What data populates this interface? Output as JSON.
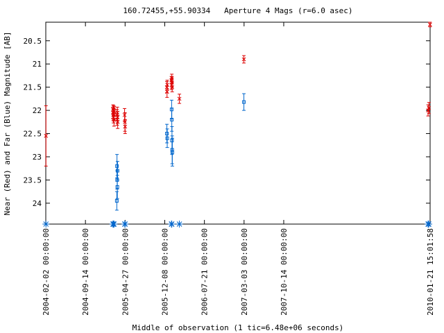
{
  "chart_data": {
    "type": "scatter",
    "title": "160.72455,+55.90334   Aperture 4 Mags (r=6.0 asec)",
    "xlabel": "Middle of observation (1 tic=6.48e+06 seconds)",
    "ylabel": "Near (Red) and Far (Blue) Magnitude [AB]",
    "x_axis": {
      "type": "date",
      "range": [
        "2004-02-02 00:00:00",
        "2010-01-21 15:01:58"
      ],
      "tick_labels": [
        "2004-02-02 00:00:00",
        "2004-09-14 00:00:00",
        "2005-04-27 00:00:00",
        "2005-12-08 00:00:00",
        "2006-07-21 00:00:00",
        "2007-03-03 00:00:00",
        "2007-10-14 00:00:00",
        "2010-01-21 15:01:58"
      ]
    },
    "y_axis": {
      "inverted": true,
      "range": [
        24.45,
        20.1
      ],
      "tick_labels": [
        "20.5",
        "21",
        "21.5",
        "22",
        "22.5",
        "23",
        "23.5",
        "24"
      ]
    },
    "series": [
      {
        "name": "Near",
        "color": "#dd0000",
        "marker": "x",
        "points": [
          {
            "x": "2004-02-03",
            "y": 22.55,
            "err": 0.65
          },
          {
            "x": "2005-02-17",
            "y": 22.05,
            "err": 0.12
          },
          {
            "x": "2005-02-18",
            "y": 21.98,
            "err": 0.1
          },
          {
            "x": "2005-02-19",
            "y": 22.1,
            "err": 0.12
          },
          {
            "x": "2005-02-20",
            "y": 22.15,
            "err": 0.12
          },
          {
            "x": "2005-02-21",
            "y": 22.0,
            "err": 0.1
          },
          {
            "x": "2005-02-22",
            "y": 22.08,
            "err": 0.12
          },
          {
            "x": "2005-02-23",
            "y": 22.2,
            "err": 0.14
          },
          {
            "x": "2005-02-24",
            "y": 22.02,
            "err": 0.1
          },
          {
            "x": "2005-03-12",
            "y": 22.1,
            "err": 0.12
          },
          {
            "x": "2005-03-13",
            "y": 22.2,
            "err": 0.12
          },
          {
            "x": "2005-03-14",
            "y": 22.05,
            "err": 0.12
          },
          {
            "x": "2005-03-15",
            "y": 22.15,
            "err": 0.12
          },
          {
            "x": "2005-03-16",
            "y": 22.25,
            "err": 0.14
          },
          {
            "x": "2005-04-24",
            "y": 22.1,
            "err": 0.14
          },
          {
            "x": "2005-04-26",
            "y": 22.25,
            "err": 0.2
          },
          {
            "x": "2005-04-27",
            "y": 22.35,
            "err": 0.15
          },
          {
            "x": "2005-12-20",
            "y": 21.5,
            "err": 0.12
          },
          {
            "x": "2005-12-21",
            "y": 21.6,
            "err": 0.12
          },
          {
            "x": "2005-12-22",
            "y": 21.45,
            "err": 0.1
          },
          {
            "x": "2006-01-15",
            "y": 21.35,
            "err": 0.08
          },
          {
            "x": "2006-01-16",
            "y": 21.45,
            "err": 0.1
          },
          {
            "x": "2006-01-17",
            "y": 21.3,
            "err": 0.08
          },
          {
            "x": "2006-01-18",
            "y": 21.4,
            "err": 0.1
          },
          {
            "x": "2006-01-19",
            "y": 21.5,
            "err": 0.1
          },
          {
            "x": "2006-03-01",
            "y": 21.75,
            "err": 0.1
          },
          {
            "x": "2007-03-02",
            "y": 20.9,
            "err": 0.08
          },
          {
            "x": "2010-01-10",
            "y": 22.0,
            "err": 0.12
          },
          {
            "x": "2010-01-15",
            "y": 21.95,
            "err": 0.12
          },
          {
            "x": "2010-01-21",
            "y": 20.15,
            "err": 0.05
          }
        ]
      },
      {
        "name": "Far",
        "color": "#0066cc",
        "marker": "square",
        "points": [
          {
            "x": "2005-03-11",
            "y": 23.95,
            "err": 0.2
          },
          {
            "x": "2005-03-12",
            "y": 23.2,
            "err": 0.25
          },
          {
            "x": "2005-03-13",
            "y": 23.5,
            "err": 0.2
          },
          {
            "x": "2005-03-14",
            "y": 23.65,
            "err": 0.25
          },
          {
            "x": "2005-03-15",
            "y": 23.3,
            "err": 0.2
          },
          {
            "x": "2005-12-20",
            "y": 22.5,
            "err": 0.2
          },
          {
            "x": "2005-12-22",
            "y": 22.6,
            "err": 0.2
          },
          {
            "x": "2006-01-16",
            "y": 21.98,
            "err": 0.2
          },
          {
            "x": "2006-01-17",
            "y": 22.2,
            "err": 0.25
          },
          {
            "x": "2006-01-18",
            "y": 22.65,
            "err": 0.3
          },
          {
            "x": "2006-01-19",
            "y": 22.85,
            "err": 0.3
          },
          {
            "x": "2006-01-20",
            "y": 22.9,
            "err": 0.3
          },
          {
            "x": "2007-03-02",
            "y": 21.82,
            "err": 0.18
          }
        ]
      }
    ],
    "upper_limit_markers": [
      {
        "x": "2004-02-03",
        "color": "#0066cc"
      },
      {
        "x": "2005-02-17",
        "color": "#0066cc"
      },
      {
        "x": "2005-02-19",
        "color": "#0066cc"
      },
      {
        "x": "2005-02-21",
        "color": "#0066cc"
      },
      {
        "x": "2005-02-23",
        "color": "#0066cc"
      },
      {
        "x": "2005-04-25",
        "color": "#0066cc"
      },
      {
        "x": "2005-04-27",
        "color": "#0066cc"
      },
      {
        "x": "2006-01-15",
        "color": "#0066cc"
      },
      {
        "x": "2006-01-17",
        "color": "#0066cc"
      },
      {
        "x": "2006-03-01",
        "color": "#0066cc"
      },
      {
        "x": "2010-01-10",
        "color": "#0066cc"
      },
      {
        "x": "2010-01-15",
        "color": "#0066cc"
      },
      {
        "x": "2010-01-21",
        "color": "#0066cc"
      }
    ],
    "grid": false,
    "legend": "none"
  }
}
